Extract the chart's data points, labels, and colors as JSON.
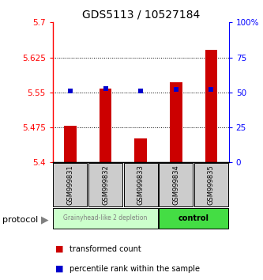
{
  "title": "GDS5113 / 10527184",
  "samples": [
    "GSM999831",
    "GSM999832",
    "GSM999833",
    "GSM999834",
    "GSM999835"
  ],
  "bar_values": [
    5.478,
    5.558,
    5.452,
    5.572,
    5.642
  ],
  "percentile_values": [
    5.553,
    5.558,
    5.553,
    5.556,
    5.556
  ],
  "ylim_left": [
    5.4,
    5.7
  ],
  "ylim_right": [
    0,
    100
  ],
  "yticks_left": [
    5.4,
    5.475,
    5.55,
    5.625,
    5.7
  ],
  "ytick_labels_left": [
    "5.4",
    "5.475",
    "5.55",
    "5.625",
    "5.7"
  ],
  "yticks_right": [
    0,
    25,
    50,
    75,
    100
  ],
  "ytick_labels_right": [
    "0",
    "25",
    "50",
    "75",
    "100%"
  ],
  "bar_color": "#cc0000",
  "percentile_color": "#0000cc",
  "bar_bottom": 5.4,
  "group1_samples": [
    0,
    1,
    2
  ],
  "group2_samples": [
    3,
    4
  ],
  "group1_label": "Grainyhead-like 2 depletion",
  "group2_label": "control",
  "group1_bg": "#ccffcc",
  "group2_bg": "#44dd44",
  "protocol_label": "protocol",
  "legend_bar_label": "transformed count",
  "legend_pct_label": "percentile rank within the sample",
  "title_fontsize": 10,
  "tick_fontsize": 7.5,
  "sample_fontsize": 6,
  "protocol_fontsize": 8,
  "legend_fontsize": 7,
  "bar_width": 0.35
}
